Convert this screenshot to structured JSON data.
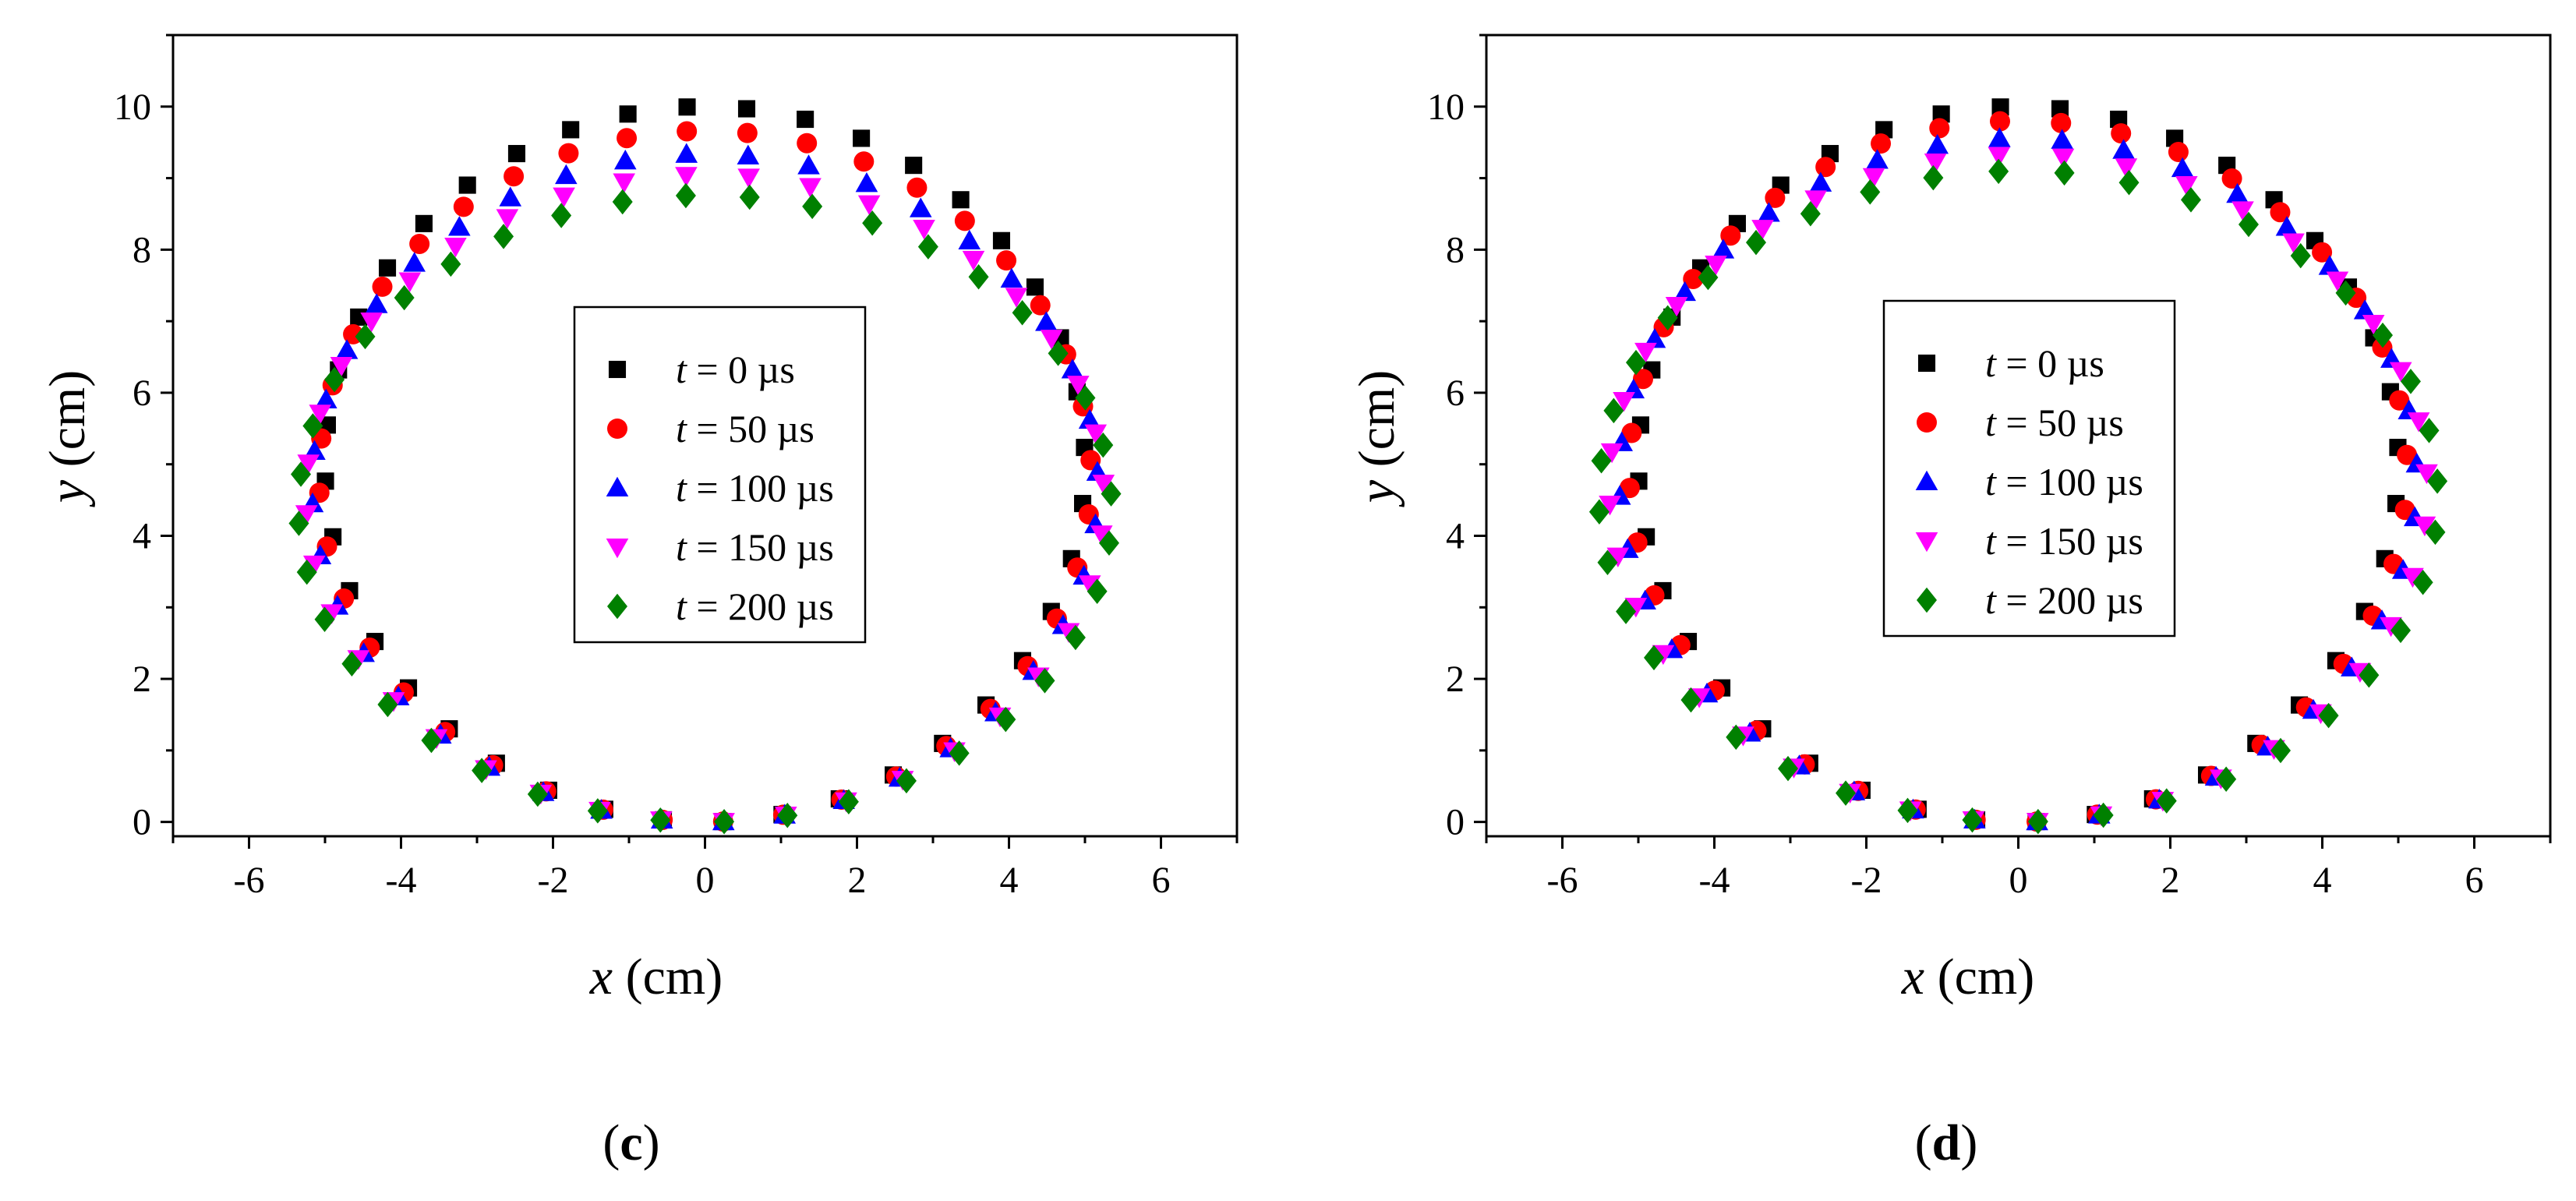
{
  "chart_data": [
    {
      "type": "scatter",
      "panel_label": "c",
      "xlabel": {
        "var": "x",
        "unit": " (cm)"
      },
      "ylabel": {
        "var": "y",
        "unit": " (cm)"
      },
      "xlim": [
        -7,
        7
      ],
      "ylim": [
        -0.2,
        11
      ],
      "x_ticks": [
        -6,
        -4,
        -2,
        0,
        2,
        4,
        6
      ],
      "y_ticks": [
        0,
        2,
        4,
        6,
        8,
        10
      ],
      "x_tick_labels": [
        "-6",
        "-4",
        "-2",
        "0",
        "2",
        "4",
        "6"
      ],
      "y_tick_labels": [
        "0",
        "2",
        "4",
        "6",
        "8",
        "10"
      ],
      "legend_position": "center",
      "series": [
        {
          "name": "t = 0 µs",
          "label_var": "t",
          "label_rest": " = 0 µs",
          "marker": "square",
          "color": "#000000",
          "a": 5.0,
          "b": 5.0,
          "top": 10.0
        },
        {
          "name": "t = 50 µs",
          "label_var": "t",
          "label_rest": " = 50 µs",
          "marker": "circle",
          "color": "#ff0000",
          "a": 5.08,
          "b": 4.83,
          "top": 9.66
        },
        {
          "name": "t = 100 µs",
          "label_var": "t",
          "label_rest": " = 100 µs",
          "marker": "triangle-up",
          "color": "#0000ff",
          "a": 5.17,
          "b": 4.67,
          "top": 9.34
        },
        {
          "name": "t = 150 µs",
          "label_var": "t",
          "label_rest": " = 150 µs",
          "marker": "triangle-down",
          "color": "#ff00ff",
          "a": 5.25,
          "b": 4.52,
          "top": 9.04
        },
        {
          "name": "t = 200 µs",
          "label_var": "t",
          "label_rest": " = 200 µs",
          "marker": "diamond",
          "color": "#008000",
          "a": 5.35,
          "b": 4.38,
          "top": 8.76
        }
      ]
    },
    {
      "type": "scatter",
      "panel_label": "d",
      "xlabel": {
        "var": "x",
        "unit": " (cm)"
      },
      "ylabel": {
        "var": "y",
        "unit": " (cm)"
      },
      "xlim": [
        -7,
        7
      ],
      "ylim": [
        -0.2,
        11
      ],
      "x_ticks": [
        -6,
        -4,
        -2,
        0,
        2,
        4,
        6
      ],
      "y_ticks": [
        0,
        2,
        4,
        6,
        8,
        10
      ],
      "x_tick_labels": [
        "-6",
        "-4",
        "-2",
        "0",
        "2",
        "4",
        "6"
      ],
      "y_tick_labels": [
        "0",
        "2",
        "4",
        "6",
        "8",
        "10"
      ],
      "legend_position": "center-left",
      "series": [
        {
          "name": "t = 0 µs",
          "label_var": "t",
          "label_rest": " = 0 µs",
          "marker": "square",
          "color": "#000000",
          "a": 5.0,
          "b": 5.0,
          "top": 10.0
        },
        {
          "name": "t = 50 µs",
          "label_var": "t",
          "label_rest": " = 50 µs",
          "marker": "circle",
          "color": "#ff0000",
          "a": 5.12,
          "b": 4.9,
          "top": 9.8
        },
        {
          "name": "t = 100 µs",
          "label_var": "t",
          "label_rest": " = 100 µs",
          "marker": "triangle-up",
          "color": "#0000ff",
          "a": 5.25,
          "b": 4.78,
          "top": 9.56
        },
        {
          "name": "t = 150 µs",
          "label_var": "t",
          "label_rest": " = 150 µs",
          "marker": "triangle-down",
          "color": "#ff00ff",
          "a": 5.38,
          "b": 4.66,
          "top": 9.32
        },
        {
          "name": "t = 200 µs",
          "label_var": "t",
          "label_rest": " = 200 µs",
          "marker": "diamond",
          "color": "#008000",
          "a": 5.52,
          "b": 4.55,
          "top": 9.1
        }
      ]
    }
  ]
}
